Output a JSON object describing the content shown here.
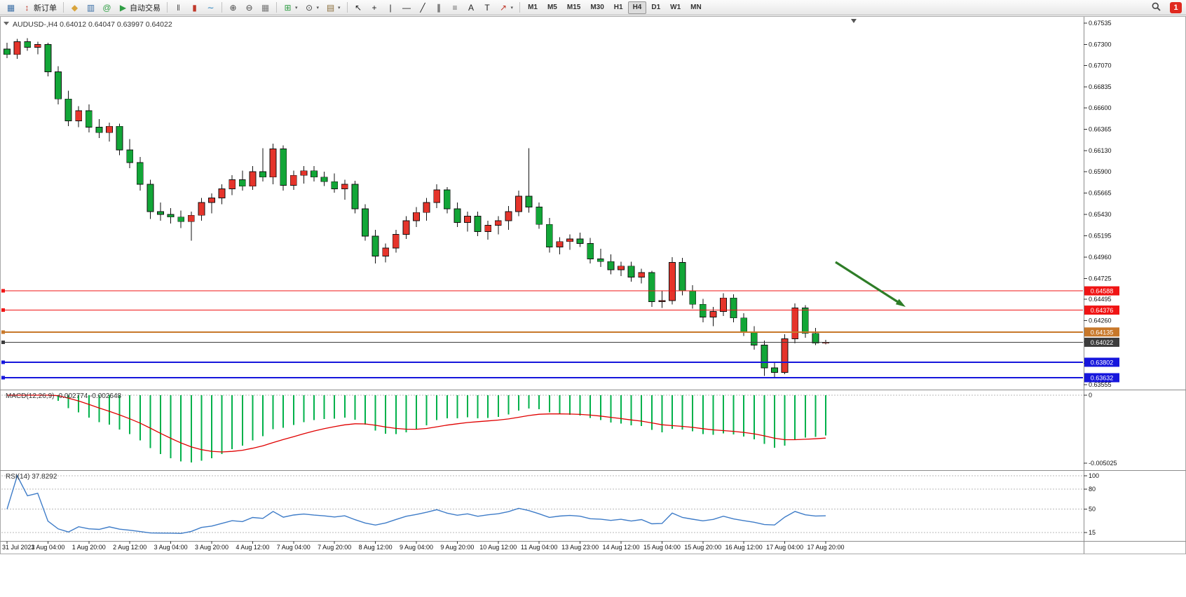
{
  "window": {
    "notification_count": "1"
  },
  "toolbar": {
    "groups": [
      {
        "items": [
          {
            "name": "new-chart-button",
            "icon": "new-chart-icon"
          },
          {
            "name": "new-order-button",
            "icon": "new-order-icon",
            "label": "新订单"
          }
        ]
      },
      {
        "items": [
          {
            "name": "metaeditor-button",
            "icon": "metaeditor-icon"
          },
          {
            "name": "market-watch-button",
            "icon": "market-watch-icon"
          },
          {
            "name": "community-button",
            "icon": "at-icon"
          },
          {
            "name": "autotrading-button",
            "icon": "autotrading-icon",
            "label": "自动交易"
          }
        ]
      },
      {
        "items": [
          {
            "name": "bar-chart-button",
            "icon": "bar-chart-icon"
          },
          {
            "name": "candlestick-chart-button",
            "icon": "candlestick-icon"
          },
          {
            "name": "line-chart-button",
            "icon": "line-chart-icon"
          }
        ]
      },
      {
        "items": [
          {
            "name": "zoom-in-button",
            "icon": "zoom-in-icon"
          },
          {
            "name": "zoom-out-button",
            "icon": "zoom-out-icon"
          },
          {
            "name": "tile-windows-button",
            "icon": "tile-windows-icon"
          }
        ]
      },
      {
        "items": [
          {
            "name": "indicators-button",
            "icon": "indicators-icon",
            "dropdown": true
          },
          {
            "name": "periods-button",
            "icon": "clock-icon",
            "dropdown": true
          },
          {
            "name": "templates-button",
            "icon": "template-icon",
            "dropdown": true
          }
        ]
      },
      {
        "items": [
          {
            "name": "cursor-button",
            "icon": "cursor-icon"
          },
          {
            "name": "crosshair-button",
            "icon": "crosshair-icon"
          },
          {
            "name": "vertical-line-button",
            "icon": "vertical-line-icon"
          },
          {
            "name": "horizontal-line-button",
            "icon": "horizontal-line-icon"
          },
          {
            "name": "trendline-button",
            "icon": "trendline-icon"
          },
          {
            "name": "channel-button",
            "icon": "channel-icon"
          },
          {
            "name": "fibonacci-button",
            "icon": "fibonacci-icon"
          },
          {
            "name": "text-button",
            "icon": "text-icon"
          },
          {
            "name": "label-button",
            "icon": "label-icon"
          },
          {
            "name": "arrows-button",
            "icon": "arrow-icon",
            "dropdown": true
          }
        ]
      }
    ],
    "timeframes": {
      "items": [
        "M1",
        "M5",
        "M15",
        "M30",
        "H1",
        "H4",
        "D1",
        "W1",
        "MN"
      ],
      "active": "H4"
    }
  },
  "chart": {
    "symbol": "AUDUSD-",
    "period": "H4",
    "open": "0.64012",
    "high": "0.64047",
    "low": "0.63997",
    "close": "0.64022"
  },
  "indicators": {
    "macd": {
      "title": "MACD(12,26,9)",
      "main_value": "-0.002774",
      "signal_value": "-0.002648",
      "zero_label": "0",
      "min_label": "-0.005025",
      "fast": 12,
      "slow": 26,
      "signal": 9,
      "histogram_color": "#00B14A",
      "signal_color": "#E00000"
    },
    "rsi": {
      "title": "RSI(14)",
      "value": "37.8292",
      "period": 14,
      "levels": [
        "100",
        "80",
        "50",
        "15"
      ],
      "line_color": "#3E7CC8"
    }
  },
  "hlines": [
    {
      "name": "resistance-line-1",
      "price": 0.64588,
      "label": "0.64588",
      "color": "#F01414",
      "width": 1
    },
    {
      "name": "resistance-line-2",
      "price": 0.64376,
      "label": "0.64376",
      "color": "#F01414",
      "width": 1
    },
    {
      "name": "mid-pivot-line",
      "price": 0.64135,
      "label": "0.64135",
      "color": "#C8782A",
      "width": 2
    },
    {
      "name": "current-price-line",
      "price": 0.64022,
      "label": "0.64022",
      "color": "#3C3C3C",
      "width": 1
    },
    {
      "name": "support-line-1",
      "price": 0.63802,
      "label": "0.63802",
      "color": "#1616DC",
      "width": 2
    },
    {
      "name": "support-line-2",
      "price": 0.63632,
      "label": "0.63632",
      "color": "#1616DC",
      "width": 2
    }
  ],
  "annotation": {
    "name": "trend-arrow",
    "color": "#2E7D27"
  },
  "chart_data": {
    "type": "candlestick",
    "symbol": "AUDUSD-",
    "timeframe": "H4",
    "up_color": "#E5342B",
    "down_color": "#12A637",
    "y_range": [
      0.63555,
      0.67535
    ],
    "y_ticks": [
      "0.67535",
      "0.67300",
      "0.67070",
      "0.66835",
      "0.66600",
      "0.66365",
      "0.66130",
      "0.65900",
      "0.65665",
      "0.65430",
      "0.65195",
      "0.64960",
      "0.64725",
      "0.64495",
      "0.64260",
      "0.64025",
      "0.63790",
      "0.63555"
    ],
    "x_labels": [
      "31 Jul 2023",
      "1 Aug 04:00",
      "1 Aug 20:00",
      "2 Aug 12:00",
      "3 Aug 04:00",
      "3 Aug 20:00",
      "4 Aug 12:00",
      "7 Aug 04:00",
      "7 Aug 20:00",
      "8 Aug 12:00",
      "9 Aug 04:00",
      "9 Aug 20:00",
      "10 Aug 12:00",
      "11 Aug 04:00",
      "13 Aug 23:00",
      "14 Aug 12:00",
      "15 Aug 04:00",
      "15 Aug 20:00",
      "16 Aug 12:00",
      "17 Aug 04:00",
      "17 Aug 20:00"
    ],
    "label_every": 4,
    "candles": [
      [
        0.6725,
        0.6732,
        0.6715,
        0.6719
      ],
      [
        0.6719,
        0.6736,
        0.6714,
        0.6733
      ],
      [
        0.6733,
        0.6737,
        0.6723,
        0.6727
      ],
      [
        0.6727,
        0.6733,
        0.6719,
        0.673
      ],
      [
        0.673,
        0.6732,
        0.6695,
        0.67
      ],
      [
        0.67,
        0.6706,
        0.6664,
        0.667
      ],
      [
        0.667,
        0.6679,
        0.664,
        0.6646
      ],
      [
        0.6646,
        0.6662,
        0.6639,
        0.6657
      ],
      [
        0.6657,
        0.6664,
        0.6633,
        0.6639
      ],
      [
        0.6639,
        0.6648,
        0.6627,
        0.6633
      ],
      [
        0.6633,
        0.6644,
        0.6623,
        0.664
      ],
      [
        0.664,
        0.6643,
        0.6608,
        0.6614
      ],
      [
        0.6614,
        0.6626,
        0.6594,
        0.66
      ],
      [
        0.66,
        0.6606,
        0.6569,
        0.6576
      ],
      [
        0.6576,
        0.6581,
        0.6538,
        0.6546
      ],
      [
        0.6546,
        0.6556,
        0.6536,
        0.6543
      ],
      [
        0.6543,
        0.655,
        0.6533,
        0.654
      ],
      [
        0.654,
        0.6547,
        0.6528,
        0.6535
      ],
      [
        0.6535,
        0.6546,
        0.6514,
        0.6542
      ],
      [
        0.6542,
        0.6561,
        0.6536,
        0.6556
      ],
      [
        0.6556,
        0.6566,
        0.6544,
        0.6561
      ],
      [
        0.6561,
        0.6576,
        0.6554,
        0.6571
      ],
      [
        0.6571,
        0.6586,
        0.6564,
        0.6581
      ],
      [
        0.6581,
        0.6591,
        0.6569,
        0.6574
      ],
      [
        0.6574,
        0.6596,
        0.657,
        0.659
      ],
      [
        0.659,
        0.6616,
        0.6579,
        0.6584
      ],
      [
        0.6584,
        0.6621,
        0.6576,
        0.6615
      ],
      [
        0.6615,
        0.6619,
        0.6569,
        0.6575
      ],
      [
        0.6575,
        0.6591,
        0.657,
        0.6586
      ],
      [
        0.6586,
        0.6596,
        0.6577,
        0.6591
      ],
      [
        0.6591,
        0.6596,
        0.6579,
        0.6584
      ],
      [
        0.6584,
        0.659,
        0.6574,
        0.6579
      ],
      [
        0.6579,
        0.6588,
        0.6567,
        0.6571
      ],
      [
        0.6571,
        0.6581,
        0.6559,
        0.6576
      ],
      [
        0.6576,
        0.658,
        0.6544,
        0.6549
      ],
      [
        0.6549,
        0.6554,
        0.6514,
        0.6519
      ],
      [
        0.6519,
        0.6526,
        0.6489,
        0.6497
      ],
      [
        0.6497,
        0.6511,
        0.649,
        0.6506
      ],
      [
        0.6506,
        0.6526,
        0.6501,
        0.6521
      ],
      [
        0.6521,
        0.6541,
        0.6516,
        0.6536
      ],
      [
        0.6536,
        0.6551,
        0.6529,
        0.6545
      ],
      [
        0.6545,
        0.6561,
        0.6536,
        0.6556
      ],
      [
        0.6556,
        0.6576,
        0.655,
        0.657
      ],
      [
        0.657,
        0.6573,
        0.6544,
        0.6549
      ],
      [
        0.6549,
        0.6556,
        0.6529,
        0.6534
      ],
      [
        0.6534,
        0.6546,
        0.6524,
        0.6541
      ],
      [
        0.6541,
        0.6546,
        0.6519,
        0.6524
      ],
      [
        0.6524,
        0.6536,
        0.6515,
        0.6531
      ],
      [
        0.6531,
        0.6541,
        0.6521,
        0.6536
      ],
      [
        0.6536,
        0.6552,
        0.6526,
        0.6546
      ],
      [
        0.6546,
        0.6569,
        0.6541,
        0.6563
      ],
      [
        0.6563,
        0.6616,
        0.6545,
        0.6551
      ],
      [
        0.6551,
        0.6556,
        0.6527,
        0.6532
      ],
      [
        0.6532,
        0.6539,
        0.6501,
        0.6507
      ],
      [
        0.6507,
        0.6518,
        0.6499,
        0.6513
      ],
      [
        0.6513,
        0.6521,
        0.6504,
        0.6516
      ],
      [
        0.6516,
        0.6523,
        0.6507,
        0.6511
      ],
      [
        0.6511,
        0.6517,
        0.6489,
        0.6494
      ],
      [
        0.6494,
        0.6505,
        0.6485,
        0.6491
      ],
      [
        0.6491,
        0.6499,
        0.6477,
        0.6482
      ],
      [
        0.6482,
        0.6491,
        0.6475,
        0.6486
      ],
      [
        0.6486,
        0.6491,
        0.6469,
        0.6474
      ],
      [
        0.6474,
        0.6483,
        0.6467,
        0.6479
      ],
      [
        0.6479,
        0.6481,
        0.6441,
        0.6447
      ],
      [
        0.6447,
        0.6459,
        0.644,
        0.6448
      ],
      [
        0.6448,
        0.6496,
        0.6444,
        0.649
      ],
      [
        0.649,
        0.6495,
        0.6454,
        0.6459
      ],
      [
        0.6459,
        0.6465,
        0.6439,
        0.6444
      ],
      [
        0.6444,
        0.645,
        0.6424,
        0.643
      ],
      [
        0.643,
        0.6441,
        0.642,
        0.6436
      ],
      [
        0.6436,
        0.6456,
        0.6431,
        0.6451
      ],
      [
        0.6451,
        0.6455,
        0.6424,
        0.6429
      ],
      [
        0.6429,
        0.6434,
        0.6409,
        0.6414
      ],
      [
        0.6414,
        0.642,
        0.6394,
        0.6399
      ],
      [
        0.6399,
        0.6404,
        0.6365,
        0.6374
      ],
      [
        0.6374,
        0.638,
        0.6363,
        0.6369
      ],
      [
        0.6369,
        0.6411,
        0.6367,
        0.6406
      ],
      [
        0.6406,
        0.6445,
        0.6401,
        0.644
      ],
      [
        0.644,
        0.6443,
        0.6407,
        0.6412
      ],
      [
        0.6412,
        0.6418,
        0.6399,
        0.64012
      ],
      [
        0.64012,
        0.64047,
        0.63997,
        0.64022
      ]
    ]
  }
}
